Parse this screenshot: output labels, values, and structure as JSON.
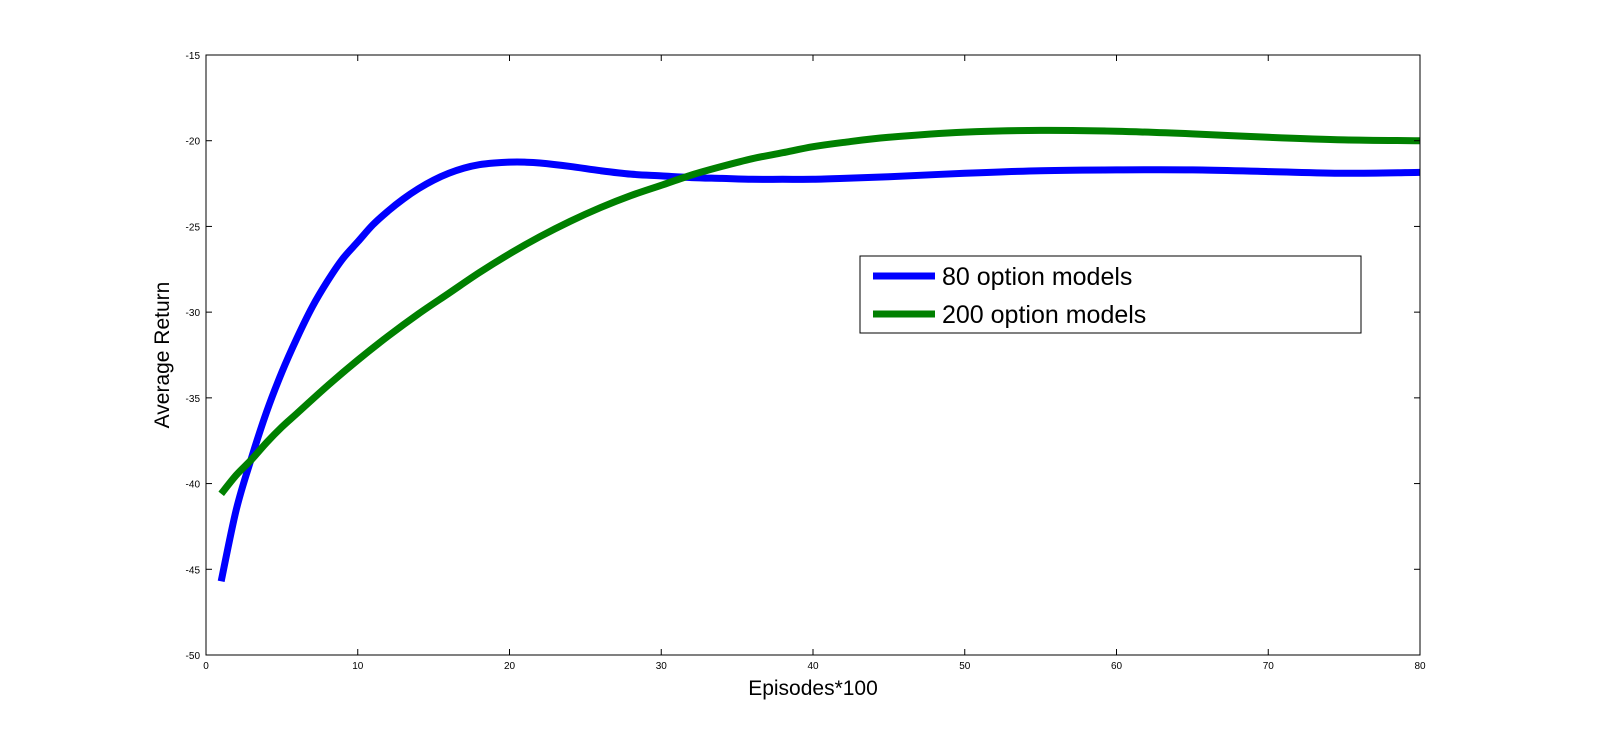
{
  "chart_data": {
    "type": "line",
    "title": "",
    "xlabel": "Episodes*100",
    "ylabel": "Average Return",
    "xlim": [
      0,
      80
    ],
    "ylim": [
      -50,
      -15
    ],
    "xticks": [
      0,
      10,
      20,
      30,
      40,
      50,
      60,
      70,
      80
    ],
    "yticks": [
      -50,
      -45,
      -40,
      -35,
      -30,
      -25,
      -20,
      -15
    ],
    "xtick_labels": [
      "0",
      "10",
      "20",
      "30",
      "40",
      "50",
      "60",
      "70",
      "80"
    ],
    "ytick_labels": [
      "-50",
      "-45",
      "-40",
      "-35",
      "-30",
      "-25",
      "-20",
      "-15"
    ],
    "grid": false,
    "legend_position": "center-right",
    "series": [
      {
        "name": "80 option models",
        "color": "#0000ff",
        "x": [
          1,
          2,
          3,
          4,
          5,
          6,
          7,
          8,
          9,
          10,
          11,
          12,
          13,
          14,
          15,
          16,
          17,
          18,
          19,
          20,
          21,
          22,
          24,
          26,
          28,
          30,
          32,
          34,
          36,
          38,
          40,
          42,
          45,
          50,
          55,
          60,
          65,
          70,
          75,
          80
        ],
        "y": [
          -45.7,
          -41.5,
          -38.5,
          -35.8,
          -33.5,
          -31.5,
          -29.7,
          -28.2,
          -26.9,
          -25.9,
          -24.9,
          -24.1,
          -23.4,
          -22.8,
          -22.3,
          -21.9,
          -21.6,
          -21.4,
          -21.3,
          -21.25,
          -21.25,
          -21.3,
          -21.5,
          -21.75,
          -21.95,
          -22.05,
          -22.15,
          -22.2,
          -22.25,
          -22.25,
          -22.25,
          -22.2,
          -22.1,
          -21.9,
          -21.75,
          -21.7,
          -21.7,
          -21.8,
          -21.9,
          -21.85
        ]
      },
      {
        "name": "200 option models",
        "color": "#008000",
        "x": [
          1,
          2,
          3,
          4,
          5,
          6,
          8,
          10,
          12,
          14,
          16,
          18,
          20,
          22,
          24,
          26,
          28,
          30,
          32,
          34,
          36,
          38,
          40,
          42,
          45,
          50,
          55,
          60,
          65,
          70,
          75,
          80
        ],
        "y": [
          -40.6,
          -39.5,
          -38.6,
          -37.6,
          -36.7,
          -35.9,
          -34.3,
          -32.8,
          -31.4,
          -30.1,
          -28.9,
          -27.7,
          -26.6,
          -25.6,
          -24.7,
          -23.9,
          -23.2,
          -22.6,
          -22.0,
          -21.5,
          -21.05,
          -20.7,
          -20.35,
          -20.1,
          -19.8,
          -19.5,
          -19.4,
          -19.45,
          -19.6,
          -19.8,
          -19.95,
          -20.0
        ]
      }
    ]
  }
}
